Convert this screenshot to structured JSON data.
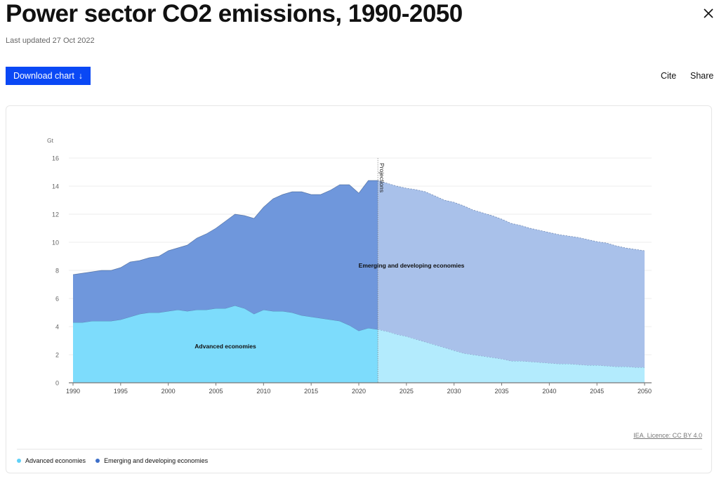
{
  "header": {
    "title": "Power sector CO2 emissions, 1990-2050",
    "updated": "Last updated 27 Oct 2022",
    "download_label": "Download chart",
    "download_icon": "↓",
    "cite_label": "Cite",
    "share_label": "Share"
  },
  "footer": {
    "licence": "IEA. Licence: CC BY 4.0"
  },
  "colors": {
    "advanced": "#7ddcfc",
    "advanced_proj": "#b3ebfd",
    "emerging": "#6f97dc",
    "emerging_proj": "#a9c1ea",
    "button": "#0a48f5"
  },
  "chart_data": {
    "type": "area",
    "stacked": true,
    "title": "Power sector CO2 emissions, 1990-2050",
    "ylabel": "Gt",
    "xlabel": "",
    "xlim": [
      1990,
      2050
    ],
    "ylim": [
      0,
      16
    ],
    "x_ticks": [
      "1990",
      "1995",
      "2000",
      "2005",
      "2010",
      "2015",
      "2020",
      "2025",
      "2030",
      "2035",
      "2040",
      "2045",
      "2050"
    ],
    "y_ticks": [
      "0",
      "2",
      "4",
      "6",
      "8",
      "10",
      "12",
      "14",
      "16"
    ],
    "grid": true,
    "projection_start": 2022,
    "projection_label": "Projections",
    "x_start": 1990,
    "series": [
      {
        "name": "Advanced economies",
        "label": "Advanced economies",
        "values": [
          4.3,
          4.3,
          4.4,
          4.4,
          4.4,
          4.5,
          4.7,
          4.9,
          5.0,
          5.0,
          5.1,
          5.2,
          5.1,
          5.2,
          5.2,
          5.3,
          5.3,
          5.5,
          5.3,
          4.9,
          5.2,
          5.1,
          5.1,
          5.0,
          4.8,
          4.7,
          4.6,
          4.5,
          4.4,
          4.1,
          3.7,
          3.9,
          3.8,
          3.65,
          3.45,
          3.3,
          3.1,
          2.9,
          2.7,
          2.5,
          2.3,
          2.1,
          2.0,
          1.9,
          1.8,
          1.7,
          1.55,
          1.55,
          1.5,
          1.45,
          1.4,
          1.35,
          1.35,
          1.3,
          1.25,
          1.25,
          1.2,
          1.15,
          1.15,
          1.1,
          1.1
        ]
      },
      {
        "name": "Emerging and developing economies",
        "label": "Emerging and developing economies",
        "values": [
          3.4,
          3.5,
          3.5,
          3.6,
          3.6,
          3.7,
          3.9,
          3.8,
          3.9,
          4.0,
          4.3,
          4.4,
          4.7,
          5.1,
          5.4,
          5.7,
          6.2,
          6.5,
          6.6,
          6.8,
          7.3,
          8.0,
          8.3,
          8.6,
          8.8,
          8.7,
          8.8,
          9.2,
          9.7,
          10.0,
          9.8,
          10.5,
          10.6,
          10.55,
          10.55,
          10.55,
          10.65,
          10.7,
          10.6,
          10.5,
          10.55,
          10.5,
          10.3,
          10.2,
          10.1,
          9.95,
          9.8,
          9.65,
          9.5,
          9.4,
          9.3,
          9.2,
          9.1,
          9.05,
          8.95,
          8.8,
          8.75,
          8.6,
          8.45,
          8.4,
          8.3
        ]
      }
    ],
    "legend_position": "bottom-left"
  }
}
